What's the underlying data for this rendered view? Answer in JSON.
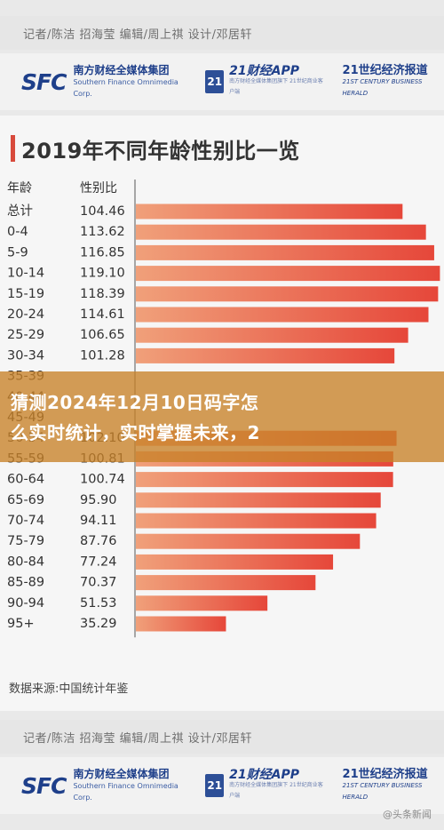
{
  "credits": {
    "text": "记者/陈洁 招海莹 编辑/周上祺 设计/邓居轩"
  },
  "logos": {
    "sfc": "SFC",
    "group_cn": "南方财经全媒体集团",
    "group_en": "Southern Finance Omnimedia Corp.",
    "badge": "21",
    "app_cn": "21财经APP",
    "app_en": "南方财经全媒体集团旗下 21世纪商业客户端",
    "herald_cn": "21世纪经济报道",
    "herald_en": "21ST CENTURY BUSINESS HERALD"
  },
  "headline": {
    "line1": "猜测2024年12月10日码字怎",
    "line2": "么实时统计，实时掌握未来，2"
  },
  "source": "数据来源:中国统计年鉴",
  "footer": "@头条新闻",
  "colors": {
    "bar_start": "#f0a07a",
    "bar_end": "#e6473a",
    "overlay": "#c8822a",
    "brand_blue": "#1e3f8a"
  },
  "chart_data": {
    "type": "bar",
    "orientation": "horizontal",
    "title": "2019年不同年龄性别比一览",
    "header_category": "年龄",
    "header_value": "性别比",
    "categories": [
      "总计",
      "0-4",
      "5-9",
      "10-14",
      "15-19",
      "20-24",
      "25-29",
      "30-34",
      "35-39",
      "40-44",
      "45-49",
      "50-54",
      "55-59",
      "60-64",
      "65-69",
      "70-74",
      "75-79",
      "80-84",
      "85-89",
      "90-94",
      "95+"
    ],
    "values": [
      104.46,
      113.62,
      116.85,
      119.1,
      118.39,
      114.61,
      106.65,
      101.28,
      null,
      null,
      null,
      102.1,
      100.81,
      100.74,
      95.9,
      94.11,
      87.76,
      77.24,
      70.37,
      51.53,
      35.29
    ],
    "value_labels": [
      "104.46",
      "113.62",
      "116.85",
      "119.10",
      "118.39",
      "114.61",
      "106.65",
      "101.28",
      "",
      "",
      "",
      "102.10",
      "100.81",
      "100.74",
      "95.90",
      "94.11",
      "87.76",
      "77.24",
      "70.37",
      "51.53",
      "35.29"
    ],
    "xlim": [
      0,
      120
    ],
    "grid": false,
    "legend": "none"
  }
}
